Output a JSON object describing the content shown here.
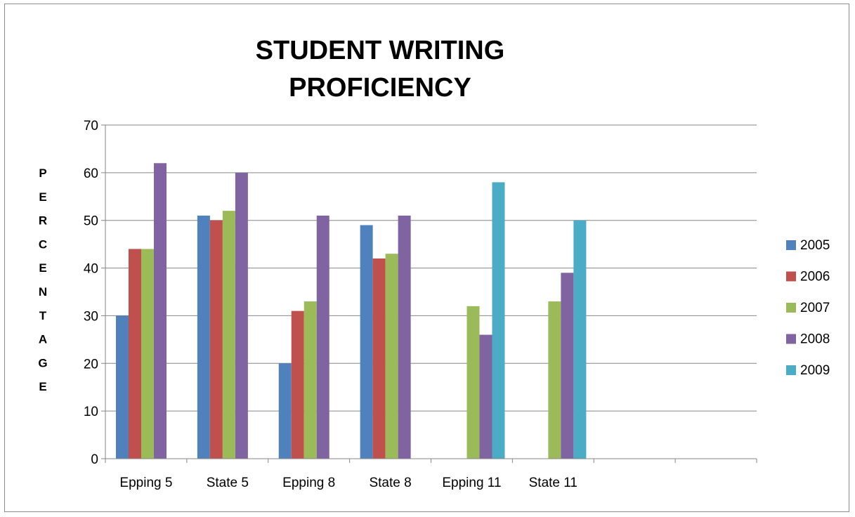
{
  "chart_data": {
    "type": "bar",
    "title": "STUDENT WRITING PROFICIENCY",
    "title_lines": [
      "STUDENT WRITING",
      "PROFICIENCY"
    ],
    "ylabel": "PERCENTAGE",
    "ylabel_letters": [
      "P",
      "E",
      "R",
      "C",
      "E",
      "N",
      "T",
      "A",
      "G",
      "E"
    ],
    "xlabel": "",
    "ylim": [
      0,
      70
    ],
    "yticks": [
      0,
      10,
      20,
      30,
      40,
      50,
      60,
      70
    ],
    "ytick_labels": [
      "0",
      "10",
      "20",
      "30",
      "40",
      "50",
      "60",
      "70"
    ],
    "grid": true,
    "legend_position": "right",
    "categories": [
      "Epping 5",
      "State 5",
      "Epping 8",
      "State 8",
      "Epping 11",
      "State 11",
      "",
      ""
    ],
    "series": [
      {
        "name": "2005",
        "color": "#4f81bd",
        "values": [
          30,
          51,
          20,
          49,
          null,
          null,
          null,
          null
        ]
      },
      {
        "name": "2006",
        "color": "#c0504d",
        "values": [
          44,
          50,
          31,
          42,
          null,
          null,
          null,
          null
        ]
      },
      {
        "name": "2007",
        "color": "#9bbb59",
        "values": [
          44,
          52,
          33,
          43,
          32,
          33,
          null,
          null
        ]
      },
      {
        "name": "2008",
        "color": "#8064a2",
        "values": [
          62,
          60,
          51,
          51,
          26,
          39,
          null,
          null
        ]
      },
      {
        "name": "2009",
        "color": "#4bacc6",
        "values": [
          null,
          null,
          null,
          null,
          58,
          50,
          null,
          null
        ]
      }
    ]
  }
}
